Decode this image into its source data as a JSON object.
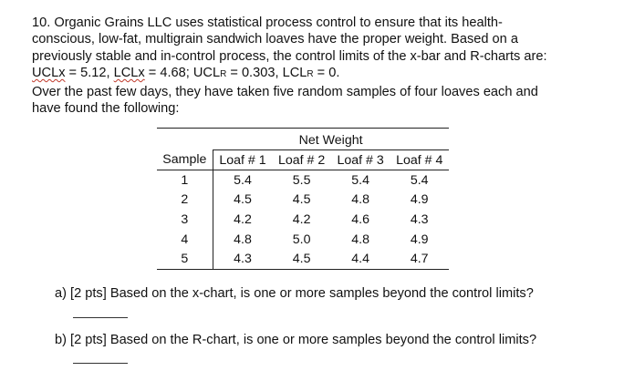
{
  "problem": {
    "line1": "10. Organic Grains LLC uses statistical process control to ensure that its health-",
    "line2": "conscious, low-fat, multigrain sandwich loaves have the proper weight. Based on a",
    "line3": "previously stable and in-control process, the control limits of the x-bar and R-charts are:",
    "limits": {
      "uclx_label": "UCLx",
      "uclx_rest": " = 5.12, ",
      "lclx_label": "LCLx",
      "lclx_rest": " = 4.68; UCL",
      "r1": "R",
      "uclr_rest": " = 0.303, LCL",
      "r2": "R",
      "lclr_rest": " = 0."
    },
    "line5": "Over the past few days, they have taken five random samples of four loaves each and",
    "line6": "have found the following:"
  },
  "table": {
    "group_header": "Net Weight",
    "headers": [
      "Sample",
      "Loaf # 1",
      "Loaf # 2",
      "Loaf # 3",
      "Loaf # 4"
    ],
    "rows": [
      [
        "1",
        "5.4",
        "5.5",
        "5.4",
        "5.4"
      ],
      [
        "2",
        "4.5",
        "4.5",
        "4.8",
        "4.9"
      ],
      [
        "3",
        "4.2",
        "4.2",
        "4.6",
        "4.3"
      ],
      [
        "4",
        "4.8",
        "5.0",
        "4.8",
        "4.9"
      ],
      [
        "5",
        "4.3",
        "4.5",
        "4.4",
        "4.7"
      ]
    ]
  },
  "questions": {
    "a": "a)  [2 pts] Based on the x-chart, is one or more samples beyond the control limits?",
    "b": "b)  [2 pts] Based on the R-chart, is one or more samples beyond the control limits?"
  }
}
